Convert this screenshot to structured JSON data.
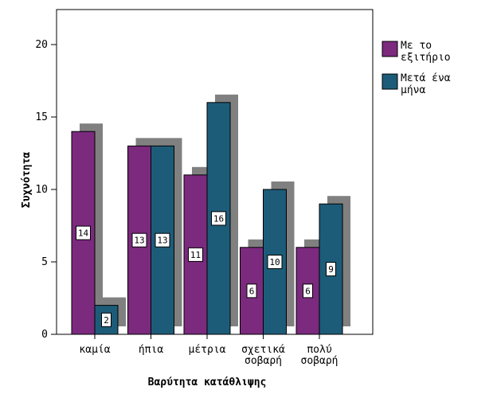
{
  "chart_data": {
    "type": "bar",
    "title": "",
    "xlabel": "Βαρύτητα κατάθλιψης",
    "ylabel": "Συχνότητα",
    "ylim": [
      0,
      23
    ],
    "yticks": [
      0,
      5,
      10,
      15,
      20
    ],
    "categories": [
      "καμία",
      "ήπια",
      "μέτρια",
      "σχετικά σοβαρή",
      "πολύ σοβαρή"
    ],
    "category_lines": [
      [
        "καμία"
      ],
      [
        "ήπια"
      ],
      [
        "μέτρια"
      ],
      [
        "σχετικά",
        "σοβαρή"
      ],
      [
        "πολύ",
        "σοβαρή"
      ]
    ],
    "series": [
      {
        "name": "Με το εξιτήριο",
        "legend_lines": [
          "Με το",
          "εξιτήριο"
        ],
        "color": "#7b2a7e",
        "values": [
          14,
          13,
          11,
          6,
          6
        ]
      },
      {
        "name": "Μετά ένα μήνα",
        "legend_lines": [
          "Μετά ένα",
          "μήνα"
        ],
        "color": "#1d5c79",
        "values": [
          2,
          13,
          16,
          10,
          9
        ]
      }
    ],
    "shadow_color": "#808080",
    "data_labels": true,
    "grid": false,
    "legend_position": "right"
  }
}
